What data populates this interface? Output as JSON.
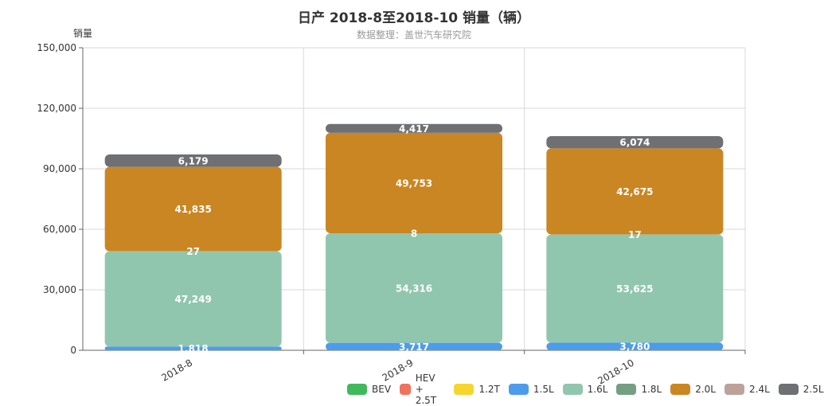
{
  "chart_data": {
    "type": "bar",
    "stacked": true,
    "title": "日产 2018-8至2018-10 销量（辆）",
    "subtitle": "数据整理：盖世汽车研究院",
    "ylabel": "销量",
    "categories": [
      "2018-8",
      "2018-9",
      "2018-10"
    ],
    "ylim": [
      0,
      150000
    ],
    "yticks": [
      "0",
      "30,000",
      "60,000",
      "90,000",
      "120,000",
      "150,000"
    ],
    "ytick_values": [
      0,
      30000,
      60000,
      90000,
      120000,
      150000
    ],
    "grid": true,
    "legend_position": "bottom-right",
    "series": [
      {
        "name": "BEV",
        "color": "#3fb95c",
        "values": [
          0,
          0,
          0
        ],
        "labels": [
          "",
          "",
          ""
        ]
      },
      {
        "name": "HEV + 2.5T",
        "color": "#f0725c",
        "values": [
          0,
          0,
          0
        ],
        "labels": [
          "",
          "",
          ""
        ]
      },
      {
        "name": "1.2T",
        "color": "#f5d62e",
        "values": [
          0,
          0,
          0
        ],
        "labels": [
          "",
          "",
          ""
        ]
      },
      {
        "name": "1.5L",
        "color": "#4d9cec",
        "values": [
          1818,
          3717,
          3780
        ],
        "labels": [
          "1,818",
          "3,717",
          "3,780"
        ]
      },
      {
        "name": "1.6L",
        "color": "#91c6ae",
        "values": [
          47249,
          54316,
          53625
        ],
        "labels": [
          "47,249",
          "54,316",
          "53,625"
        ]
      },
      {
        "name": "1.8L",
        "color": "#749f83",
        "values": [
          27,
          8,
          17
        ],
        "labels": [
          "27",
          "8",
          "17"
        ]
      },
      {
        "name": "2.0L",
        "color": "#ca8622",
        "values": [
          41835,
          49753,
          42675
        ],
        "labels": [
          "41,835",
          "49,753",
          "42,675"
        ]
      },
      {
        "name": "2.4L",
        "color": "#bda29a",
        "values": [
          0,
          0,
          0
        ],
        "labels": [
          "",
          "",
          ""
        ]
      },
      {
        "name": "2.5L",
        "color": "#6e7074",
        "values": [
          6179,
          4417,
          6074
        ],
        "labels": [
          "6,179",
          "4,417",
          "6,074"
        ]
      }
    ]
  }
}
